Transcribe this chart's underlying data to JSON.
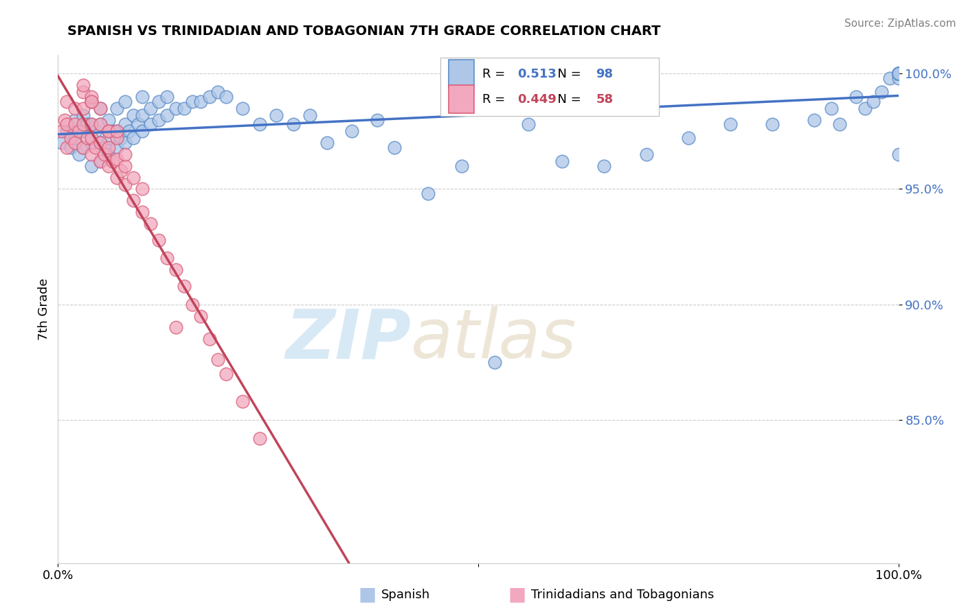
{
  "title": "SPANISH VS TRINIDADIAN AND TOBAGONIAN 7TH GRADE CORRELATION CHART",
  "source_text": "Source: ZipAtlas.com",
  "ylabel": "7th Grade",
  "x_min": 0.0,
  "x_max": 1.0,
  "y_min": 0.788,
  "y_max": 1.008,
  "yticks": [
    0.85,
    0.9,
    0.95,
    1.0
  ],
  "ytick_labels": [
    "85.0%",
    "90.0%",
    "95.0%",
    "100.0%"
  ],
  "blue_R": 0.513,
  "blue_N": 98,
  "pink_R": 0.449,
  "pink_N": 58,
  "blue_color": "#aec6e8",
  "blue_edge_color": "#5b8dc8",
  "blue_line_color": "#4472c4",
  "pink_color": "#f2a8be",
  "pink_edge_color": "#d9607a",
  "pink_line_color": "#c0445a",
  "legend_label_blue": "Spanish",
  "legend_label_pink": "Trinidadians and Tobagonians",
  "watermark_zip": "ZIP",
  "watermark_atlas": "atlas",
  "background_color": "#ffffff",
  "grid_color": "#cccccc",
  "tick_color": "#4472c4",
  "blue_scatter_x": [
    0.005,
    0.01,
    0.015,
    0.02,
    0.02,
    0.025,
    0.03,
    0.03,
    0.03,
    0.035,
    0.04,
    0.04,
    0.04,
    0.04,
    0.045,
    0.05,
    0.05,
    0.05,
    0.05,
    0.055,
    0.06,
    0.06,
    0.06,
    0.065,
    0.07,
    0.07,
    0.07,
    0.075,
    0.08,
    0.08,
    0.08,
    0.085,
    0.09,
    0.09,
    0.095,
    0.1,
    0.1,
    0.1,
    0.11,
    0.11,
    0.12,
    0.12,
    0.13,
    0.13,
    0.14,
    0.15,
    0.16,
    0.17,
    0.18,
    0.19,
    0.2,
    0.22,
    0.24,
    0.26,
    0.28,
    0.3,
    0.32,
    0.35,
    0.38,
    0.4,
    0.44,
    0.48,
    0.52,
    0.56,
    0.6,
    0.65,
    0.7,
    0.75,
    0.8,
    0.85,
    0.9,
    0.92,
    0.93,
    0.95,
    0.96,
    0.97,
    0.98,
    0.99,
    1.0,
    1.0,
    1.0,
    1.0,
    1.0,
    1.0,
    1.0,
    1.0,
    1.0,
    1.0,
    1.0,
    1.0,
    1.0,
    1.0,
    1.0,
    1.0,
    1.0,
    1.0,
    1.0,
    1.0
  ],
  "blue_scatter_y": [
    0.97,
    0.975,
    0.968,
    0.972,
    0.98,
    0.965,
    0.968,
    0.975,
    0.982,
    0.978,
    0.96,
    0.97,
    0.978,
    0.988,
    0.975,
    0.962,
    0.97,
    0.978,
    0.985,
    0.968,
    0.965,
    0.972,
    0.98,
    0.975,
    0.968,
    0.975,
    0.985,
    0.972,
    0.97,
    0.978,
    0.988,
    0.975,
    0.972,
    0.982,
    0.978,
    0.975,
    0.982,
    0.99,
    0.978,
    0.985,
    0.98,
    0.988,
    0.982,
    0.99,
    0.985,
    0.985,
    0.988,
    0.988,
    0.99,
    0.992,
    0.99,
    0.985,
    0.978,
    0.982,
    0.978,
    0.982,
    0.97,
    0.975,
    0.98,
    0.968,
    0.948,
    0.96,
    0.875,
    0.978,
    0.962,
    0.96,
    0.965,
    0.972,
    0.978,
    0.978,
    0.98,
    0.985,
    0.978,
    0.99,
    0.985,
    0.988,
    0.992,
    0.998,
    0.998,
    1.0,
    1.0,
    1.0,
    1.0,
    1.0,
    1.0,
    1.0,
    1.0,
    1.0,
    1.0,
    1.0,
    1.0,
    1.0,
    1.0,
    1.0,
    1.0,
    1.0,
    1.0,
    0.965
  ],
  "pink_scatter_x": [
    0.005,
    0.008,
    0.01,
    0.01,
    0.01,
    0.015,
    0.02,
    0.02,
    0.02,
    0.025,
    0.03,
    0.03,
    0.03,
    0.03,
    0.035,
    0.04,
    0.04,
    0.04,
    0.04,
    0.045,
    0.05,
    0.05,
    0.05,
    0.055,
    0.06,
    0.06,
    0.06,
    0.065,
    0.07,
    0.07,
    0.07,
    0.075,
    0.08,
    0.08,
    0.09,
    0.09,
    0.1,
    0.1,
    0.11,
    0.12,
    0.13,
    0.14,
    0.15,
    0.16,
    0.17,
    0.18,
    0.19,
    0.2,
    0.22,
    0.24,
    0.04,
    0.05,
    0.06,
    0.07,
    0.08,
    0.14,
    0.03,
    0.04
  ],
  "pink_scatter_y": [
    0.975,
    0.98,
    0.968,
    0.978,
    0.988,
    0.972,
    0.97,
    0.978,
    0.985,
    0.975,
    0.968,
    0.978,
    0.985,
    0.992,
    0.972,
    0.965,
    0.972,
    0.978,
    0.988,
    0.968,
    0.962,
    0.97,
    0.978,
    0.965,
    0.96,
    0.968,
    0.975,
    0.962,
    0.955,
    0.963,
    0.972,
    0.958,
    0.952,
    0.96,
    0.945,
    0.955,
    0.94,
    0.95,
    0.935,
    0.928,
    0.92,
    0.915,
    0.908,
    0.9,
    0.895,
    0.885,
    0.876,
    0.87,
    0.858,
    0.842,
    0.99,
    0.985,
    0.975,
    0.975,
    0.965,
    0.89,
    0.995,
    0.988
  ]
}
